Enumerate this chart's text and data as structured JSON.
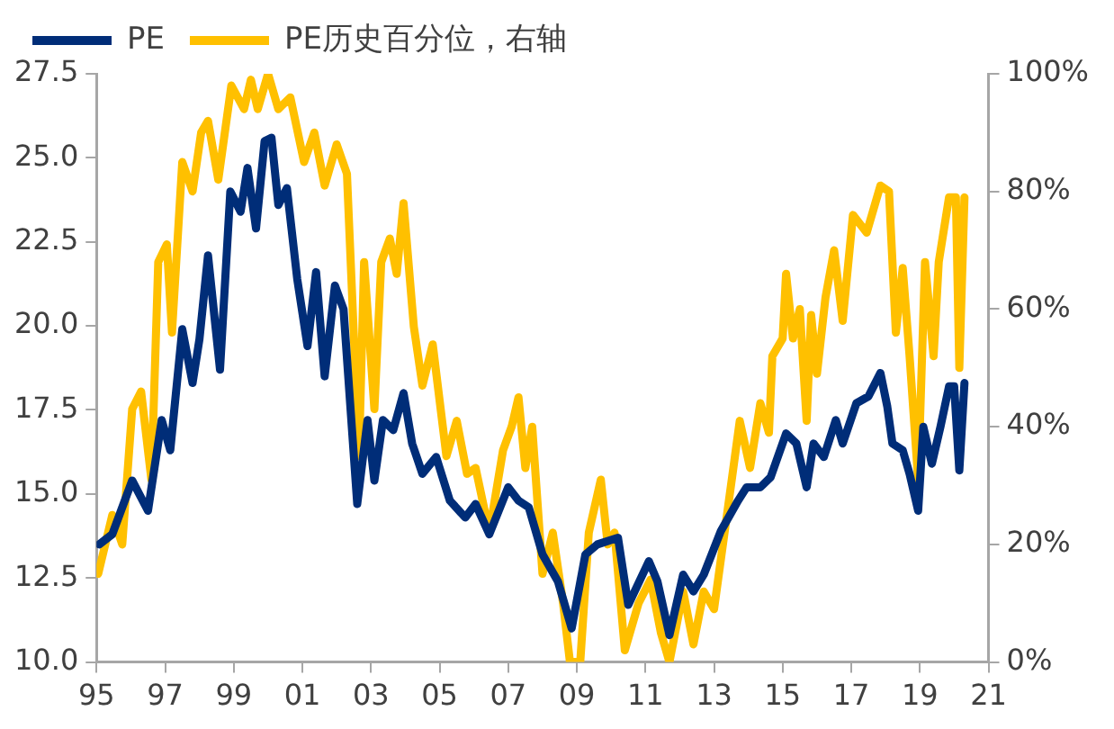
{
  "chart_data": {
    "type": "line",
    "legend": "top",
    "grid": false,
    "marker": "none",
    "line_style": "solid",
    "xlim": [
      1995,
      2021
    ],
    "xticks": [
      {
        "value": 1995,
        "label": "95"
      },
      {
        "value": 1997,
        "label": "97"
      },
      {
        "value": 1999,
        "label": "99"
      },
      {
        "value": 2001,
        "label": "01"
      },
      {
        "value": 2003,
        "label": "03"
      },
      {
        "value": 2005,
        "label": "05"
      },
      {
        "value": 2007,
        "label": "07"
      },
      {
        "value": 2009,
        "label": "09"
      },
      {
        "value": 2011,
        "label": "11"
      },
      {
        "value": 2013,
        "label": "13"
      },
      {
        "value": 2015,
        "label": "15"
      },
      {
        "value": 2017,
        "label": "17"
      },
      {
        "value": 2019,
        "label": "19"
      },
      {
        "value": 2021,
        "label": "21"
      }
    ],
    "ylim": [
      10,
      27.5
    ],
    "yticks": [
      {
        "value": 10,
        "label": "10.0"
      },
      {
        "value": 12.5,
        "label": "12.5"
      },
      {
        "value": 15,
        "label": "15.0"
      },
      {
        "value": 17.5,
        "label": "17.5"
      },
      {
        "value": 20,
        "label": "20.0"
      },
      {
        "value": 22.5,
        "label": "22.5"
      },
      {
        "value": 25,
        "label": "25.0"
      },
      {
        "value": 27.5,
        "label": "27.5"
      }
    ],
    "y2lim": [
      0,
      100
    ],
    "y2ticks": [
      {
        "value": 0,
        "label": "0%"
      },
      {
        "value": 20,
        "label": "20%"
      },
      {
        "value": 40,
        "label": "40%"
      },
      {
        "value": 60,
        "label": "60%"
      },
      {
        "value": 80,
        "label": "80%"
      },
      {
        "value": 100,
        "label": "100%"
      }
    ],
    "series": [
      {
        "name": "PE",
        "color": "#002d78",
        "x": [
          1995.08,
          1995.46,
          1996.04,
          1996.5,
          1996.9,
          1997.15,
          1997.5,
          1997.8,
          1998.0,
          1998.25,
          1998.6,
          1998.9,
          1999.2,
          1999.4,
          1999.65,
          1999.9,
          2000.1,
          2000.3,
          2000.55,
          2000.85,
          2001.15,
          2001.4,
          2001.65,
          2001.95,
          2002.2,
          2002.6,
          2002.9,
          2003.1,
          2003.35,
          2003.65,
          2003.95,
          2004.2,
          2004.5,
          2004.9,
          2005.3,
          2005.75,
          2006.05,
          2006.45,
          2007.0,
          2007.3,
          2007.6,
          2008.0,
          2008.45,
          2008.85,
          2009.25,
          2009.6,
          2010.2,
          2010.5,
          2011.1,
          2011.35,
          2011.7,
          2012.1,
          2012.4,
          2012.7,
          2013.2,
          2013.7,
          2013.95,
          2014.35,
          2014.65,
          2015.1,
          2015.4,
          2015.7,
          2015.9,
          2016.2,
          2016.55,
          2016.75,
          2017.15,
          2017.5,
          2017.85,
          2018.05,
          2018.2,
          2018.5,
          2018.7,
          2018.95,
          2019.1,
          2019.35,
          2019.6,
          2019.85,
          2020.0,
          2020.15,
          2020.3
        ],
        "values": [
          13.5,
          13.8,
          15.4,
          14.5,
          17.2,
          16.3,
          19.9,
          18.3,
          19.6,
          22.1,
          18.7,
          24.0,
          23.4,
          24.7,
          22.9,
          25.5,
          25.6,
          23.6,
          24.1,
          21.4,
          19.4,
          21.6,
          18.5,
          21.2,
          20.5,
          14.7,
          17.2,
          15.4,
          17.2,
          16.9,
          18.0,
          16.5,
          15.6,
          16.1,
          14.8,
          14.3,
          14.7,
          13.8,
          15.2,
          14.8,
          14.6,
          13.2,
          12.4,
          11.0,
          13.2,
          13.5,
          13.7,
          11.7,
          13.0,
          12.4,
          10.8,
          12.6,
          12.1,
          12.6,
          13.9,
          14.8,
          15.2,
          15.2,
          15.5,
          16.8,
          16.5,
          15.2,
          16.5,
          16.1,
          17.2,
          16.5,
          17.7,
          17.9,
          18.6,
          17.6,
          16.5,
          16.3,
          15.6,
          14.5,
          17.0,
          15.9,
          17.0,
          18.2,
          18.2,
          15.7,
          18.3
        ]
      },
      {
        "name": "PE历史百分位，右轴",
        "color": "#ffc000",
        "axis": "y2",
        "x": [
          1995.05,
          1995.46,
          1995.75,
          1996.04,
          1996.3,
          1996.6,
          1996.8,
          1997.05,
          1997.2,
          1997.5,
          1997.8,
          1998.05,
          1998.25,
          1998.55,
          1998.93,
          1999.3,
          1999.5,
          1999.7,
          2000.0,
          2000.3,
          2000.65,
          2001.05,
          2001.35,
          2001.65,
          2002.0,
          2002.3,
          2002.65,
          2002.8,
          2003.1,
          2003.3,
          2003.55,
          2003.75,
          2003.95,
          2004.25,
          2004.5,
          2004.8,
          2005.2,
          2005.5,
          2005.8,
          2006.05,
          2006.45,
          2006.85,
          2007.1,
          2007.3,
          2007.5,
          2007.7,
          2008.0,
          2008.3,
          2008.6,
          2008.8,
          2009.1,
          2009.35,
          2009.7,
          2009.9,
          2010.1,
          2010.4,
          2010.8,
          2011.15,
          2011.45,
          2011.7,
          2012.1,
          2012.4,
          2012.7,
          2013.0,
          2013.4,
          2013.75,
          2014.05,
          2014.35,
          2014.6,
          2014.7,
          2015.0,
          2015.1,
          2015.3,
          2015.5,
          2015.7,
          2015.83,
          2016.0,
          2016.25,
          2016.5,
          2016.75,
          2017.05,
          2017.45,
          2017.85,
          2018.1,
          2018.3,
          2018.5,
          2018.7,
          2018.95,
          2019.15,
          2019.4,
          2019.55,
          2019.85,
          2020.05,
          2020.15,
          2020.3
        ],
        "values": [
          15,
          25,
          20,
          43,
          46,
          31,
          68,
          71,
          56,
          85,
          80,
          90,
          92,
          82,
          98,
          94,
          99,
          94,
          100,
          94,
          96,
          85,
          90,
          81,
          88,
          83,
          35,
          68,
          43,
          68,
          72,
          66,
          78,
          57,
          47,
          54,
          35,
          41,
          32,
          33,
          22,
          36,
          40,
          45,
          33,
          40,
          15,
          22,
          10,
          0,
          0,
          22,
          31,
          20,
          22,
          2,
          10,
          14,
          5,
          0,
          12,
          3,
          12,
          9,
          26,
          41,
          33,
          44,
          39,
          52,
          55,
          66,
          55,
          60,
          41,
          59,
          49,
          62,
          70,
          58,
          76,
          73,
          81,
          80,
          56,
          67,
          52,
          31,
          68,
          52,
          68,
          79,
          79,
          50,
          79
        ]
      }
    ]
  }
}
